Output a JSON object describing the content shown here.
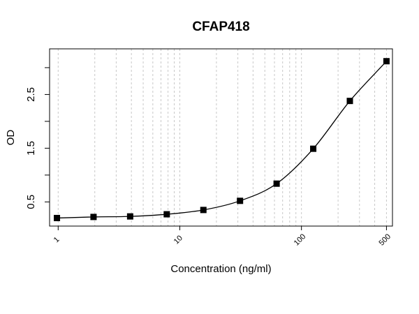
{
  "chart_data": {
    "type": "scatter",
    "title": "CFAP418",
    "xlabel": "Concentration (ng/ml)",
    "ylabel": "OD",
    "x_scale": "log",
    "xlim": [
      0.85,
      560
    ],
    "ylim": [
      0.05,
      3.35
    ],
    "x_ticks": [
      1,
      10,
      100,
      500
    ],
    "x_tick_labels": [
      "1",
      "10",
      "100",
      "500"
    ],
    "y_ticks": [
      0.5,
      1.5,
      2.5
    ],
    "y_tick_labels": [
      "0.5",
      "1.5",
      "2.5"
    ],
    "y_minor_ticks": [
      1.0,
      2.0,
      3.0
    ],
    "grid": "vertical-dashed",
    "x": [
      0.977,
      1.953,
      3.906,
      7.813,
      15.625,
      31.25,
      62.5,
      125,
      250,
      500
    ],
    "y": [
      0.2,
      0.22,
      0.23,
      0.27,
      0.35,
      0.52,
      0.84,
      1.49,
      2.38,
      3.12
    ],
    "fit_curve": "4PL",
    "colors": {
      "points": "#000000",
      "curve": "#000000",
      "grid": "#c8c8c8"
    }
  }
}
